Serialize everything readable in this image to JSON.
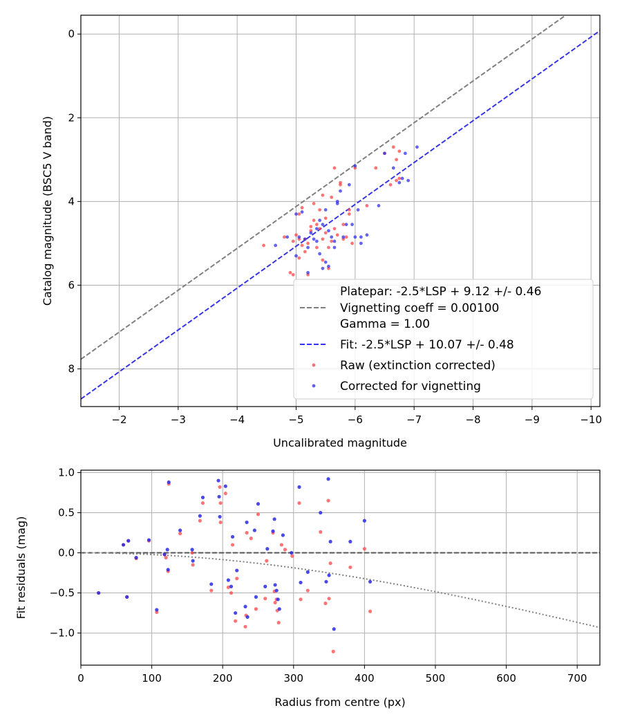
{
  "chart_data": [
    {
      "type": "scatter",
      "xlabel": "Uncalibrated magnitude",
      "ylabel": "Catalog magnitude (BSC5 V band)",
      "xlim": [
        -1.35,
        -10.15
      ],
      "ylim": [
        8.9,
        -0.45
      ],
      "x_inverted": true,
      "y_inverted": true,
      "grid": true,
      "xticks": [
        -2,
        -3,
        -4,
        -5,
        -6,
        -7,
        -8,
        -9,
        -10
      ],
      "xtick_labels": [
        "−2",
        "−3",
        "−4",
        "−5",
        "−6",
        "−7",
        "−8",
        "−9",
        "−10"
      ],
      "yticks": [
        0,
        2,
        4,
        6,
        8
      ],
      "ytick_labels": [
        "0",
        "2",
        "4",
        "6",
        "8"
      ],
      "legend_position": "lower-right",
      "lines": [
        {
          "name": "Platepar: -2.5*LSP + 9.12 +/- 0.46",
          "name_line2": "Vignetting coeff = 0.00100",
          "name_line3": "Gamma = 1.00",
          "offset": 9.12,
          "color": "#7f7f7f",
          "style": "dashed"
        },
        {
          "name": "Fit: -2.5*LSP + 10.07 +/- 0.48",
          "offset": 10.07,
          "color": "#3535e6",
          "style": "dashed"
        }
      ],
      "series": [
        {
          "name": "Raw (extinction corrected)",
          "color": "#ff4040",
          "points": [
            [
              -4.45,
              5.05
            ],
            [
              -4.8,
              4.85
            ],
            [
              -4.95,
              5.75
            ],
            [
              -5.0,
              4.8
            ],
            [
              -5.05,
              4.9
            ],
            [
              -5.1,
              5.05
            ],
            [
              -5.15,
              5.2
            ],
            [
              -5.2,
              5.0
            ],
            [
              -5.25,
              4.7
            ],
            [
              -5.3,
              4.45
            ],
            [
              -5.35,
              4.55
            ],
            [
              -5.4,
              4.2
            ],
            [
              -5.45,
              4.9
            ],
            [
              -5.5,
              4.75
            ],
            [
              -5.55,
              5.1
            ],
            [
              -5.6,
              3.9
            ],
            [
              -5.65,
              3.2
            ],
            [
              -5.7,
              4.8
            ],
            [
              -5.75,
              3.55
            ],
            [
              -5.8,
              4.55
            ],
            [
              -5.85,
              4.85
            ],
            [
              -5.9,
              4.2
            ],
            [
              -5.95,
              5.0
            ],
            [
              -5.05,
              4.3
            ],
            [
              -5.2,
              5.75
            ],
            [
              -5.45,
              5.4
            ],
            [
              -5.55,
              5.6
            ],
            [
              -5.3,
              4.05
            ],
            [
              -5.15,
              4.9
            ],
            [
              -4.9,
              5.7
            ],
            [
              -6.2,
              4.1
            ],
            [
              -6.35,
              3.2
            ],
            [
              -6.5,
              2.85
            ],
            [
              -6.6,
              3.6
            ],
            [
              -6.7,
              3.0
            ],
            [
              -6.75,
              2.8
            ],
            [
              -6.65,
              2.7
            ],
            [
              -6.7,
              3.5
            ],
            [
              -6.75,
              3.45
            ],
            [
              -6.0,
              3.2
            ],
            [
              -5.65,
              4.65
            ],
            [
              -5.8,
              4.9
            ],
            [
              -5.45,
              3.85
            ],
            [
              -5.1,
              4.15
            ],
            [
              -5.35,
              5.1
            ],
            [
              -5.25,
              4.6
            ],
            [
              -5.75,
              3.6
            ],
            [
              -5.5,
              4.4
            ],
            [
              -5.6,
              4.95
            ],
            [
              -5.9,
              4.3
            ],
            [
              -4.95,
              4.95
            ],
            [
              -5.05,
              5.35
            ],
            [
              -5.4,
              4.65
            ]
          ]
        },
        {
          "name": "Corrected for vignetting",
          "color": "#2a2ae8",
          "points": [
            [
              -4.65,
              5.05
            ],
            [
              -4.85,
              4.85
            ],
            [
              -5.0,
              5.3
            ],
            [
              -5.05,
              4.85
            ],
            [
              -5.15,
              4.9
            ],
            [
              -5.2,
              5.1
            ],
            [
              -5.3,
              4.9
            ],
            [
              -5.35,
              4.65
            ],
            [
              -5.4,
              4.45
            ],
            [
              -5.45,
              4.55
            ],
            [
              -5.5,
              4.2
            ],
            [
              -5.55,
              5.55
            ],
            [
              -5.6,
              4.85
            ],
            [
              -5.65,
              5.1
            ],
            [
              -5.7,
              4.0
            ],
            [
              -5.75,
              3.75
            ],
            [
              -5.8,
              4.85
            ],
            [
              -5.9,
              3.6
            ],
            [
              -5.95,
              4.55
            ],
            [
              -6.0,
              4.85
            ],
            [
              -6.05,
              4.2
            ],
            [
              -6.1,
              5.0
            ],
            [
              -5.1,
              4.25
            ],
            [
              -5.4,
              5.25
            ],
            [
              -5.5,
              5.45
            ],
            [
              -5.2,
              5.7
            ],
            [
              -6.1,
              4.85
            ],
            [
              -6.2,
              4.8
            ],
            [
              -6.4,
              4.1
            ],
            [
              -6.5,
              2.85
            ],
            [
              -6.65,
              3.2
            ],
            [
              -6.75,
              3.55
            ],
            [
              -6.8,
              3.45
            ],
            [
              -6.85,
              2.85
            ],
            [
              -6.9,
              3.5
            ],
            [
              -7.05,
              2.7
            ],
            [
              -6.0,
              3.15
            ],
            [
              -5.7,
              4.05
            ],
            [
              -5.55,
              4.7
            ],
            [
              -5.25,
              4.75
            ],
            [
              -5.0,
              4.3
            ],
            [
              -5.35,
              4.95
            ],
            [
              -5.85,
              4.55
            ],
            [
              -5.65,
              4.95
            ],
            [
              -5.45,
              5.6
            ]
          ]
        }
      ]
    },
    {
      "type": "scatter",
      "xlabel": "Radius from centre (px)",
      "ylabel": "Fit residuals (mag)",
      "xlim": [
        0,
        732
      ],
      "ylim": [
        -1.4,
        1.03
      ],
      "grid": true,
      "xticks": [
        0,
        100,
        200,
        300,
        400,
        500,
        600,
        700
      ],
      "xtick_labels": [
        "0",
        "100",
        "200",
        "300",
        "400",
        "500",
        "600",
        "700"
      ],
      "yticks": [
        1.0,
        0.5,
        0.0,
        -0.5,
        -1.0
      ],
      "ytick_labels": [
        "1.0",
        "0.5",
        "0.0",
        "−0.5",
        "−1.0"
      ],
      "zero_line": {
        "y": 0,
        "color": "#555555",
        "style": "dashed"
      },
      "vignetting_curve": {
        "coeff": 0.001,
        "color": "#7f7f7f",
        "style": "dotted"
      },
      "series": [
        {
          "name": "Raw (extinction corrected)",
          "color": "#ff4040",
          "points": [
            [
              25,
              -0.5
            ],
            [
              60,
              0.1
            ],
            [
              65,
              -0.55
            ],
            [
              67,
              0.15
            ],
            [
              78,
              -0.07
            ],
            [
              96,
              0.15
            ],
            [
              107,
              -0.74
            ],
            [
              118,
              -0.02
            ],
            [
              120,
              -0.06
            ],
            [
              123,
              -0.23
            ],
            [
              124,
              0.86
            ],
            [
              140,
              0.24
            ],
            [
              157,
              0.0
            ],
            [
              158,
              -0.15
            ],
            [
              168,
              0.4
            ],
            [
              172,
              0.62
            ],
            [
              184,
              -0.47
            ],
            [
              196,
              0.82
            ],
            [
              197,
              0.62
            ],
            [
              197,
              0.38
            ],
            [
              204,
              0.74
            ],
            [
              208,
              -0.43
            ],
            [
              212,
              -0.5
            ],
            [
              214,
              0.1
            ],
            [
              218,
              -0.85
            ],
            [
              220,
              -0.32
            ],
            [
              232,
              -0.92
            ],
            [
              233,
              -0.78
            ],
            [
              234,
              0.25
            ],
            [
              240,
              0.18
            ],
            [
              247,
              -0.7
            ],
            [
              250,
              0.48
            ],
            [
              260,
              -0.57
            ],
            [
              262,
              -0.1
            ],
            [
              271,
              0.25
            ],
            [
              273,
              -0.48
            ],
            [
              274,
              -0.62
            ],
            [
              276,
              -0.58
            ],
            [
              277,
              -0.72
            ],
            [
              279,
              -0.87
            ],
            [
              283,
              0.1
            ],
            [
              288,
              0.04
            ],
            [
              298,
              -0.04
            ],
            [
              308,
              0.62
            ],
            [
              310,
              -0.58
            ],
            [
              320,
              -0.47
            ],
            [
              338,
              0.26
            ],
            [
              345,
              -0.63
            ],
            [
              349,
              0.65
            ],
            [
              350,
              -0.57
            ],
            [
              352,
              -0.13
            ],
            [
              356,
              -1.23
            ],
            [
              380,
              -0.18
            ],
            [
              400,
              0.05
            ],
            [
              408,
              -0.73
            ]
          ]
        },
        {
          "name": "Corrected for vignetting",
          "color": "#2a2ae8",
          "points": [
            [
              25,
              -0.5
            ],
            [
              60,
              0.1
            ],
            [
              65,
              -0.55
            ],
            [
              67,
              0.15
            ],
            [
              78,
              -0.06
            ],
            [
              96,
              0.16
            ],
            [
              107,
              -0.71
            ],
            [
              118,
              -0.02
            ],
            [
              122,
              0.04
            ],
            [
              123,
              -0.21
            ],
            [
              124,
              0.88
            ],
            [
              140,
              0.28
            ],
            [
              157,
              0.04
            ],
            [
              158,
              -0.1
            ],
            [
              168,
              0.46
            ],
            [
              172,
              0.69
            ],
            [
              184,
              -0.39
            ],
            [
              194,
              0.9
            ],
            [
              195,
              0.7
            ],
            [
              196,
              0.45
            ],
            [
              204,
              0.83
            ],
            [
              208,
              -0.34
            ],
            [
              212,
              -0.42
            ],
            [
              214,
              0.2
            ],
            [
              218,
              -0.75
            ],
            [
              220,
              -0.22
            ],
            [
              232,
              -0.67
            ],
            [
              234,
              0.38
            ],
            [
              235,
              -0.8
            ],
            [
              245,
              0.28
            ],
            [
              247,
              -0.55
            ],
            [
              250,
              0.61
            ],
            [
              260,
              -0.42
            ],
            [
              263,
              0.05
            ],
            [
              271,
              0.27
            ],
            [
              273,
              0.42
            ],
            [
              274,
              -0.4
            ],
            [
              276,
              -0.47
            ],
            [
              278,
              -0.58
            ],
            [
              280,
              -0.7
            ],
            [
              285,
              0.22
            ],
            [
              297,
              0.0
            ],
            [
              308,
              0.82
            ],
            [
              310,
              -0.37
            ],
            [
              320,
              -0.24
            ],
            [
              338,
              0.5
            ],
            [
              346,
              -0.36
            ],
            [
              349,
              0.92
            ],
            [
              350,
              -0.28
            ],
            [
              352,
              0.14
            ],
            [
              357,
              -0.95
            ],
            [
              380,
              0.14
            ],
            [
              400,
              0.4
            ],
            [
              408,
              -0.36
            ]
          ]
        }
      ]
    }
  ]
}
